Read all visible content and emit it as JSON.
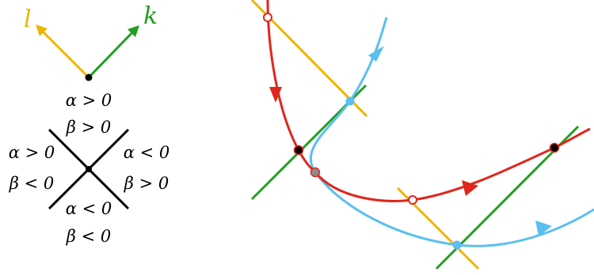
{
  "colors": {
    "l_vector": "#f0b400",
    "k_vector": "#1fa01f",
    "red_curve": "#e0261c",
    "blue_curve": "#5bbff0",
    "cross": "#000000",
    "gray_point": "#8c8c8c"
  },
  "left_panel": {
    "vector_l_label": "l",
    "vector_k_label": "k",
    "region_top": [
      "α > 0",
      "β > 0"
    ],
    "region_left": [
      "α > 0",
      "β < 0"
    ],
    "region_right": [
      "α < 0",
      "β > 0"
    ],
    "region_bottom": [
      "α < 0",
      "β < 0"
    ]
  }
}
